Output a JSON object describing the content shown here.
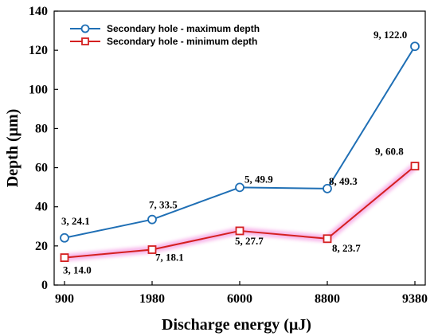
{
  "chart_data": {
    "type": "line",
    "categories": [
      "900",
      "1980",
      "6000",
      "8800",
      "9380"
    ],
    "xlabel": "Discharge energy (μJ)",
    "ylabel": "Depth (μm)",
    "ylim": [
      0,
      140
    ],
    "yticks": [
      0,
      20,
      40,
      60,
      80,
      100,
      120,
      140
    ],
    "grid": false,
    "legend": {
      "position": "top-left",
      "entries": [
        "Secondary hole - maximum depth",
        "Secondary hole - minimum depth"
      ]
    },
    "series": [
      {
        "name": "Secondary hole - maximum depth",
        "color": "#1f6fb5",
        "marker": "circle",
        "values": [
          24.1,
          33.5,
          49.9,
          49.3,
          122.0
        ],
        "labels": [
          "3, 24.1",
          "7, 33.5",
          "5, 49.9",
          "8, 49.3",
          "9, 122.0"
        ]
      },
      {
        "name": "Secondary hole - minimum depth",
        "color": "#d42020",
        "marker": "square",
        "values": [
          14.0,
          18.1,
          27.7,
          23.7,
          60.8
        ],
        "labels": [
          "3, 14.0",
          "7, 18.1",
          "5, 27.7",
          "8, 23.7",
          "9, 60.8"
        ]
      }
    ]
  }
}
